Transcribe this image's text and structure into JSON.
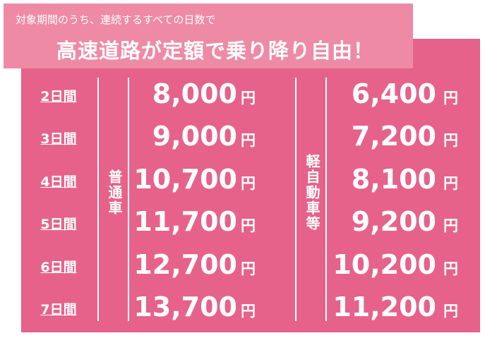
{
  "header": {
    "subtitle": "対象期間のうち、連続するすべての日数で",
    "title": "高速道路が定額で乗り降り自由！"
  },
  "table": {
    "columns": [
      "普通車",
      "軽自動車等"
    ],
    "unit": "円",
    "rows": [
      [
        "2日間",
        "8,000",
        "6,400"
      ],
      [
        "3日間",
        "9,000",
        "7,200"
      ],
      [
        "4日間",
        "10,700",
        "8,100"
      ],
      [
        "5日間",
        "11,700",
        "9,200"
      ],
      [
        "6日間",
        "12,700",
        "10,200"
      ],
      [
        "7日間",
        "13,700",
        "11,200"
      ]
    ]
  }
}
